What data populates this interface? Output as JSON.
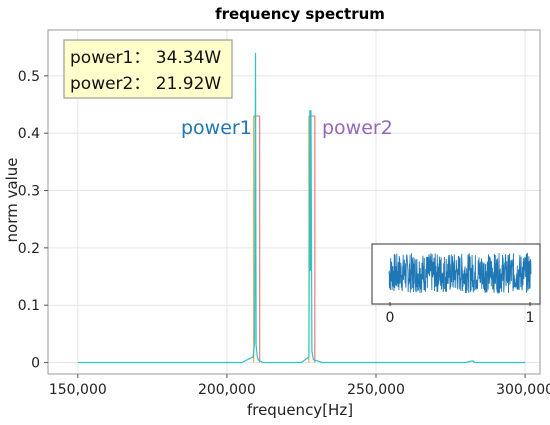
{
  "chart_data": [
    {
      "type": "line",
      "title": "frequency spectrum",
      "xlabel": "frequency[Hz]",
      "ylabel": "norm value",
      "xlim": [
        140000,
        305000
      ],
      "ylim": [
        -0.02,
        0.58
      ],
      "x_ticks": [
        150000,
        200000,
        250000,
        300000
      ],
      "x_tick_labels": [
        "150,000",
        "200,000",
        "250,000",
        "300,000"
      ],
      "y_ticks": [
        0,
        0.1,
        0.2,
        0.3,
        0.4,
        0.5
      ],
      "y_tick_labels": [
        "0",
        "0.1",
        "0.2",
        "0.3",
        "0.4",
        "0.5"
      ],
      "grid": true,
      "colors": {
        "spectrum": "#2ec4c4",
        "power1": "#1f77b4",
        "power2": "#9467bd",
        "marker_orange": "#e8913a",
        "marker_red": "#e06666"
      },
      "series": [
        {
          "x": [
            150000,
            205000,
            208800,
            209300,
            209600,
            209800,
            210000,
            210200,
            210500,
            212000,
            225000,
            227500,
            227800,
            228000,
            228200,
            228500,
            229000,
            232000,
            280000,
            282500,
            283000,
            300000
          ],
          "y": [
            0,
            0,
            0.01,
            0.035,
            0.54,
            0.03,
            0.02,
            0.01,
            0.005,
            0,
            0,
            0.01,
            0.44,
            0.16,
            0.44,
            0.02,
            0.005,
            0,
            0,
            0.003,
            0,
            0
          ]
        }
      ],
      "annotations": {
        "power_box": {
          "line1": "power1：  34.34W",
          "line2": "power2：  21.92W"
        },
        "power1_label": "power1",
        "power2_label": "power2",
        "power1_band": [
          209000,
          211000
        ],
        "power2_band": [
          227500,
          229500
        ],
        "band_height": 0.43
      }
    },
    {
      "type": "area",
      "title": "",
      "xlim": [
        0,
        1
      ],
      "x_ticks": [
        0,
        1
      ],
      "x_tick_labels": [
        "0",
        "1"
      ],
      "color": "#1f77b4",
      "description_values": "dense noise signal between -1 and 1"
    }
  ]
}
